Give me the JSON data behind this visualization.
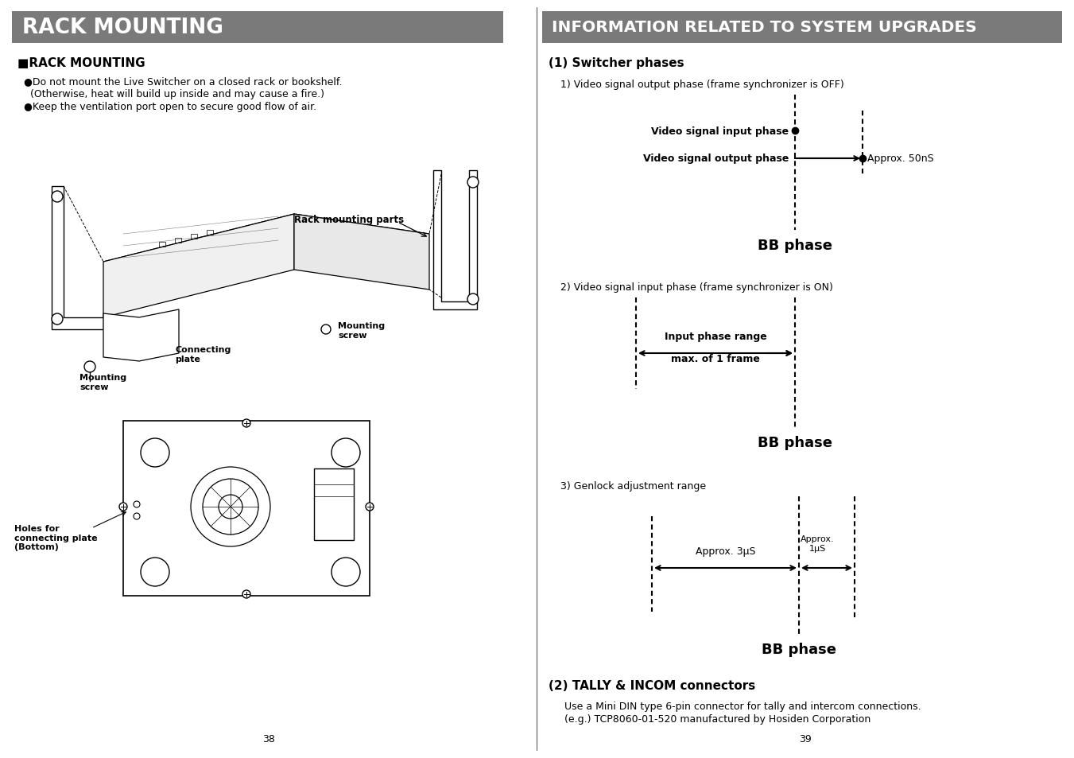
{
  "bg_color": "#ffffff",
  "header_bg": "#7a7a7a",
  "header_text_color": "#ffffff",
  "left_header": "RACK MOUNTING",
  "right_header": "INFORMATION RELATED TO SYSTEM UPGRADES",
  "left_section_title": "■RACK MOUNTING",
  "bullet1_line1": "●Do not mount the Live Switcher on a closed rack or bookshelf.",
  "bullet1_line2": "  (Otherwise, heat will build up inside and may cause a fire.)",
  "bullet2": "●Keep the ventilation port open to secure good flow of air.",
  "rack_mounting_parts_label": "Rack mounting parts",
  "connecting_plate_label": "Connecting\nplate",
  "mounting_screw_label1": "Mounting\nscrew",
  "mounting_screw_label2": "Mounting\nscrew",
  "holes_label": "Holes for\nconnecting plate\n(Bottom)",
  "page_left": "38",
  "page_right": "39",
  "switcher_phases_title": "(1) Switcher phases",
  "diagram1_label": "1) Video signal output phase (frame synchronizer is OFF)",
  "input_phase_label": "Video signal input phase",
  "output_phase_label": "Video signal output phase",
  "approx_50ns": "Approx. 50nS",
  "bb_phase": "BB phase",
  "diagram2_label": "2) Video signal input phase (frame synchronizer is ON)",
  "input_phase_range": "Input phase range",
  "max_1_frame": "max. of 1 frame",
  "diagram3_label": "3) Genlock adjustment range",
  "approx_3us": "Approx. 3μS",
  "approx_1us": "Approx.\n1μS",
  "tally_title": "(2) TALLY & INCOM connectors",
  "tally_text1": "Use a Mini DIN type 6-pin connector for tally and intercom connections.",
  "tally_text2": "(e.g.) TCP8060-01-520 manufactured by Hosiden Corporation"
}
